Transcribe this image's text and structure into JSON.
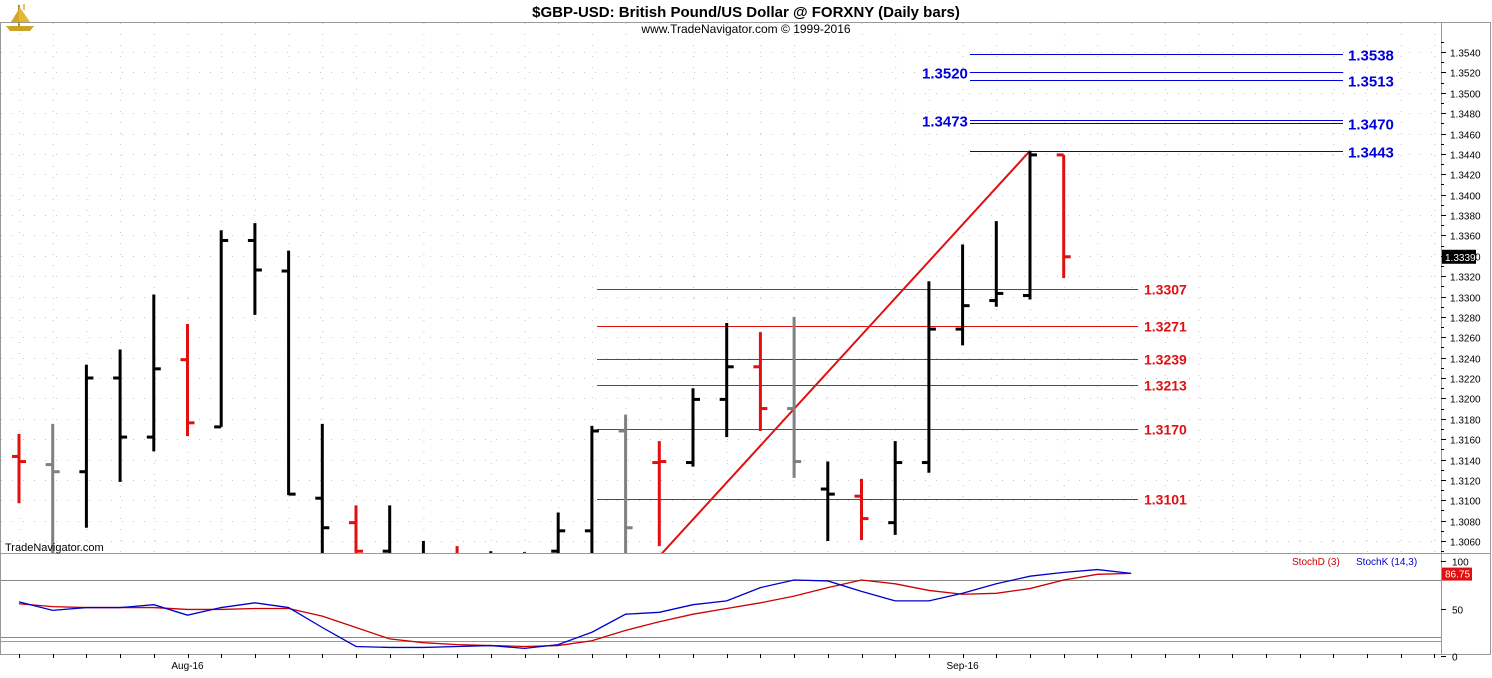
{
  "header": {
    "title": "$GBP-USD:  British Pound/US Dollar @ FORXNY  (Daily bars)",
    "subtitle": "www.TradeNavigator.com © 1999-2016"
  },
  "watermark": "TradeNavigator.com",
  "logo_icon": "sailing-ship-icon",
  "colors": {
    "up_bar": "#000000",
    "down_bar": "#e01010",
    "inside_bar": "#808080",
    "fib_up": "#0000dd",
    "fib_down": "#e01010",
    "trendline": "#e01010",
    "stoch_d": "#cc0000",
    "stoch_k": "#0000cc",
    "price_marker_bg": "#000000",
    "stoch_marker_bg": "#e01010"
  },
  "chart_data": [
    {
      "type": "ohlc",
      "title": "$GBP-USD:  British Pound/US Dollar @ FORXNY  (Daily bars)",
      "ylim": [
        1.3045,
        1.3555
      ],
      "yticks": [
        "1.3060",
        "1.3080",
        "1.3100",
        "1.3120",
        "1.3140",
        "1.3160",
        "1.3180",
        "1.3200",
        "1.3220",
        "1.3240",
        "1.3260",
        "1.3280",
        "1.3300",
        "1.3320",
        "1.3340",
        "1.3360",
        "1.3380",
        "1.3400",
        "1.3420",
        "1.3440",
        "1.3460",
        "1.3480",
        "1.3500",
        "1.3520",
        "1.3540"
      ],
      "xticks": [
        {
          "label": "Aug-16",
          "bar": 5
        },
        {
          "label": "Sep-16",
          "bar": 28
        }
      ],
      "last_price": "1.3339",
      "bars": [
        {
          "o": 1.3143,
          "h": 1.3165,
          "l": 1.3097,
          "c": 1.3138,
          "color": "down"
        },
        {
          "o": 1.3135,
          "h": 1.3175,
          "l": 1.3045,
          "c": 1.3128,
          "color": "inside"
        },
        {
          "o": 1.3128,
          "h": 1.3233,
          "l": 1.3073,
          "c": 1.322,
          "color": "up"
        },
        {
          "o": 1.322,
          "h": 1.3248,
          "l": 1.3118,
          "c": 1.3162,
          "color": "up"
        },
        {
          "o": 1.3162,
          "h": 1.3302,
          "l": 1.3148,
          "c": 1.3229,
          "color": "up"
        },
        {
          "o": 1.3238,
          "h": 1.3273,
          "l": 1.3163,
          "c": 1.3176,
          "color": "down"
        },
        {
          "o": 1.3172,
          "h": 1.3365,
          "l": 1.3172,
          "c": 1.3355,
          "color": "up"
        },
        {
          "o": 1.3355,
          "h": 1.3372,
          "l": 1.3282,
          "c": 1.3326,
          "color": "up"
        },
        {
          "o": 1.3325,
          "h": 1.3345,
          "l": 1.3105,
          "c": 1.3106,
          "color": "up"
        },
        {
          "o": 1.3102,
          "h": 1.3175,
          "l": 1.301,
          "c": 1.3073,
          "color": "up"
        },
        {
          "o": 1.3078,
          "h": 1.3095,
          "l": 1.301,
          "c": 1.305,
          "color": "down"
        },
        {
          "o": 1.305,
          "h": 1.3095,
          "l": 1.3,
          "c": 1.304,
          "color": "up"
        },
        {
          "o": 1.304,
          "h": 1.306,
          "l": 1.3,
          "c": 1.302,
          "color": "up"
        },
        {
          "o": 1.303,
          "h": 1.3055,
          "l": 1.3,
          "c": 1.302,
          "color": "down"
        },
        {
          "o": 1.302,
          "h": 1.305,
          "l": 1.3,
          "c": 1.303,
          "color": "up"
        },
        {
          "o": 1.303,
          "h": 1.3049,
          "l": 1.3,
          "c": 1.3045,
          "color": "up"
        },
        {
          "o": 1.305,
          "h": 1.3088,
          "l": 1.3,
          "c": 1.307,
          "color": "up"
        },
        {
          "o": 1.307,
          "h": 1.3173,
          "l": 1.304,
          "c": 1.3168,
          "color": "up"
        },
        {
          "o": 1.3168,
          "h": 1.3184,
          "l": 1.3045,
          "c": 1.3073,
          "color": "inside"
        },
        {
          "o": 1.3137,
          "h": 1.3158,
          "l": 1.3055,
          "c": 1.3138,
          "color": "down"
        },
        {
          "o": 1.3137,
          "h": 1.321,
          "l": 1.3133,
          "c": 1.3199,
          "color": "up"
        },
        {
          "o": 1.3199,
          "h": 1.3274,
          "l": 1.3162,
          "c": 1.3231,
          "color": "up"
        },
        {
          "o": 1.3231,
          "h": 1.3265,
          "l": 1.3168,
          "c": 1.319,
          "color": "down"
        },
        {
          "o": 1.319,
          "h": 1.328,
          "l": 1.3122,
          "c": 1.3138,
          "color": "inside"
        },
        {
          "o": 1.3111,
          "h": 1.3138,
          "l": 1.306,
          "c": 1.3106,
          "color": "up"
        },
        {
          "o": 1.3104,
          "h": 1.3121,
          "l": 1.3061,
          "c": 1.3082,
          "color": "down"
        },
        {
          "o": 1.3078,
          "h": 1.3158,
          "l": 1.3066,
          "c": 1.3137,
          "color": "up"
        },
        {
          "o": 1.3137,
          "h": 1.3315,
          "l": 1.3127,
          "c": 1.3268,
          "color": "up"
        },
        {
          "o": 1.3268,
          "h": 1.3351,
          "l": 1.3252,
          "c": 1.3291,
          "color": "up"
        },
        {
          "o": 1.3296,
          "h": 1.3374,
          "l": 1.329,
          "c": 1.3303,
          "color": "up"
        },
        {
          "o": 1.3301,
          "h": 1.3443,
          "l": 1.3297,
          "c": 1.3439,
          "color": "up"
        },
        {
          "o": 1.3439,
          "h": 1.3439,
          "l": 1.3318,
          "c": 1.3339,
          "color": "down"
        }
      ],
      "fib_extensions": {
        "left_labels": [
          "1.3520",
          "1.3473"
        ],
        "right_labels": [
          "1.3538",
          "1.3513",
          "1.3470",
          "1.3443"
        ],
        "levels": [
          {
            "value": 1.3538,
            "label_side": "right",
            "label": "1.3538"
          },
          {
            "value": 1.352,
            "label_side": "left",
            "label": "1.3520"
          },
          {
            "value": 1.3513,
            "label_side": "right",
            "label": "1.3513"
          },
          {
            "value": 1.3473,
            "label_side": "left",
            "label": "1.3473"
          },
          {
            "value": 1.347,
            "label_side": "right",
            "label": "1.3470"
          },
          {
            "value": 1.3443,
            "label_side": "right",
            "label": "1.3443"
          }
        ]
      },
      "fib_retracements": [
        {
          "value": 1.3307,
          "label": "1.3307"
        },
        {
          "value": 1.3271,
          "label": "1.3271"
        },
        {
          "value": 1.3239,
          "label": "1.3239"
        },
        {
          "value": 1.3213,
          "label": "1.3213"
        },
        {
          "value": 1.317,
          "label": "1.3170"
        },
        {
          "value": 1.3101,
          "label": "1.3101"
        }
      ],
      "trendline": {
        "from": {
          "bar": 19,
          "price": 1.3045
        },
        "to": {
          "bar": 30,
          "price": 1.3443
        }
      }
    },
    {
      "type": "line",
      "title": "Stochastic",
      "ylim": [
        0,
        100
      ],
      "yticks": [
        "100",
        "50",
        "0"
      ],
      "reference_lines": [
        80,
        20
      ],
      "legend": [
        "StochD (3)",
        "StochK (14,3)"
      ],
      "last_value": "86.75",
      "series": [
        {
          "name": "StochD (3)",
          "values": [
            55,
            52,
            51,
            51,
            51,
            49,
            49,
            50,
            50,
            42,
            30,
            18,
            14,
            12,
            11,
            10,
            11,
            16,
            27,
            36,
            44,
            50,
            56,
            63,
            72,
            80,
            76,
            69,
            65,
            66,
            71,
            80,
            86,
            87
          ]
        },
        {
          "name": "StochK (14,3)",
          "values": [
            57,
            48,
            51,
            51,
            54,
            43,
            51,
            56,
            51,
            30,
            10,
            9,
            9,
            10,
            11,
            8,
            12,
            25,
            44,
            46,
            54,
            58,
            72,
            80,
            79,
            68,
            58,
            58,
            66,
            76,
            84,
            88,
            91,
            87
          ]
        }
      ]
    }
  ]
}
